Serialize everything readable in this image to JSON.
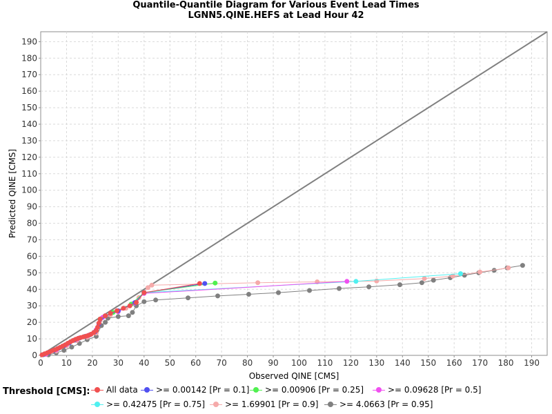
{
  "chart_data": {
    "type": "scatter",
    "title": [
      "Quantile-Quantile Diagram for Various Event Lead Times",
      "LGNN5.QINE.HEFS at Lead Hour 42"
    ],
    "xlabel": "Observed QINE [CMS]",
    "ylabel": "Predicted QINE [CMS]",
    "xlim": [
      0,
      196
    ],
    "ylim": [
      0,
      196
    ],
    "xticks": [
      0,
      10,
      20,
      30,
      40,
      50,
      60,
      70,
      80,
      90,
      100,
      110,
      120,
      130,
      140,
      150,
      160,
      170,
      180,
      190
    ],
    "yticks": [
      0,
      10,
      20,
      30,
      40,
      50,
      60,
      70,
      80,
      90,
      100,
      110,
      120,
      130,
      140,
      150,
      160,
      170,
      180,
      190
    ],
    "xtick_labels": [
      "0",
      "10",
      "20",
      "30",
      "40",
      "50",
      "60",
      "70",
      "80",
      "90",
      "100",
      "110",
      "120",
      "130",
      "140",
      "150",
      "160",
      "170",
      "180",
      "190"
    ],
    "ytick_labels": [
      "0",
      "10",
      "20",
      "30",
      "40",
      "50",
      "60",
      "70",
      "80",
      "90",
      "100",
      "110",
      "120",
      "130",
      "140",
      "150",
      "160",
      "170",
      "180",
      "190"
    ],
    "grid": true,
    "reference_line": {
      "x": [
        0,
        196
      ],
      "y": [
        0,
        196
      ],
      "color": "#808080"
    },
    "legend_title": "Threshold [CMS]:",
    "legend_position": "bottom",
    "series": [
      {
        "name": "All data",
        "color": "#f05050",
        "points": [
          [
            0.5,
            0.3
          ],
          [
            1.5,
            0.9
          ],
          [
            2.5,
            1.5
          ],
          [
            3.5,
            2.1
          ],
          [
            4.5,
            2.8
          ],
          [
            5.5,
            3.4
          ],
          [
            6.5,
            4.1
          ],
          [
            7.5,
            4.8
          ],
          [
            8.5,
            5.6
          ],
          [
            9.5,
            6.4
          ],
          [
            10.5,
            7.3
          ],
          [
            11.5,
            8.2
          ],
          [
            12.5,
            9.0
          ],
          [
            13.5,
            9.7
          ],
          [
            14.5,
            10.3
          ],
          [
            15.5,
            10.8
          ],
          [
            16.5,
            11.2
          ],
          [
            17.5,
            11.6
          ],
          [
            18.5,
            12.1
          ],
          [
            19.5,
            12.8
          ],
          [
            20.5,
            13.8
          ],
          [
            21.5,
            15.0
          ],
          [
            22.0,
            17.0
          ],
          [
            22.5,
            19.5
          ],
          [
            23.0,
            22.0
          ],
          [
            25.0,
            24.0
          ],
          [
            27.0,
            25.5
          ],
          [
            29.5,
            27.0
          ],
          [
            32.0,
            28.5
          ],
          [
            34.5,
            30.0
          ],
          [
            37.0,
            32.0
          ],
          [
            40.0,
            38.0
          ],
          [
            61.5,
            43.5
          ]
        ]
      },
      {
        "name": ">= 0.00142 [Pr = 0.1]",
        "color": "#5050f0",
        "points": [
          [
            1.0,
            0.4
          ],
          [
            3.0,
            1.6
          ],
          [
            5.0,
            2.9
          ],
          [
            7.0,
            4.3
          ],
          [
            9.0,
            5.8
          ],
          [
            11.0,
            7.5
          ],
          [
            13.0,
            9.2
          ],
          [
            15.0,
            10.5
          ],
          [
            17.0,
            11.4
          ],
          [
            19.0,
            12.4
          ],
          [
            21.0,
            14.2
          ],
          [
            22.5,
            19.0
          ],
          [
            25.0,
            24.0
          ],
          [
            30.0,
            27.0
          ],
          [
            36.5,
            32.0
          ],
          [
            40.0,
            38.0
          ],
          [
            63.5,
            43.5
          ]
        ]
      },
      {
        "name": ">= 0.00906 [Pr = 0.25]",
        "color": "#50f050",
        "points": [
          [
            1.0,
            0.4
          ],
          [
            5.0,
            2.9
          ],
          [
            9.0,
            5.8
          ],
          [
            13.0,
            9.2
          ],
          [
            17.0,
            11.4
          ],
          [
            21.0,
            14.2
          ],
          [
            23.0,
            22.0
          ],
          [
            28.0,
            26.0
          ],
          [
            35.0,
            31.0
          ],
          [
            40.0,
            38.0
          ],
          [
            67.5,
            43.8
          ]
        ]
      },
      {
        "name": ">= 0.09628 [Pr = 0.5]",
        "color": "#f050f0",
        "points": [
          [
            2.0,
            0.8
          ],
          [
            6.0,
            3.4
          ],
          [
            10.0,
            6.6
          ],
          [
            14.0,
            9.8
          ],
          [
            18.0,
            11.8
          ],
          [
            21.5,
            15.5
          ],
          [
            24.0,
            23.0
          ],
          [
            30.0,
            26.5
          ],
          [
            36.0,
            31.5
          ],
          [
            40.0,
            37.5
          ],
          [
            118.5,
            44.8
          ]
        ]
      },
      {
        "name": ">= 0.42475 [Pr = 0.75]",
        "color": "#50f0f0",
        "points": [
          [
            2.0,
            0.8
          ],
          [
            6.0,
            3.4
          ],
          [
            10.0,
            6.6
          ],
          [
            14.0,
            9.8
          ],
          [
            18.0,
            11.8
          ],
          [
            21.5,
            15.5
          ],
          [
            24.0,
            23.0
          ],
          [
            30.0,
            26.5
          ],
          [
            36.0,
            31.5
          ],
          [
            40.0,
            38.0
          ],
          [
            122.0,
            44.8
          ],
          [
            162.5,
            49.5
          ]
        ]
      },
      {
        "name": ">= 1.69901 [Pr = 0.9]",
        "color": "#f5aaaa",
        "points": [
          [
            2.0,
            0.5
          ],
          [
            6.0,
            2.6
          ],
          [
            10.0,
            5.8
          ],
          [
            14.0,
            9.0
          ],
          [
            18.0,
            11.0
          ],
          [
            21.5,
            13.5
          ],
          [
            23.0,
            21.0
          ],
          [
            27.0,
            24.5
          ],
          [
            33.0,
            28.5
          ],
          [
            38.0,
            35.0
          ],
          [
            41.5,
            41.0
          ],
          [
            43.0,
            42.5
          ],
          [
            84.0,
            44.0
          ],
          [
            107.0,
            44.5
          ],
          [
            130.0,
            45.0
          ],
          [
            148.5,
            46.5
          ],
          [
            159.5,
            48.0
          ],
          [
            170.0,
            50.5
          ],
          [
            181.0,
            53.0
          ]
        ]
      },
      {
        "name": ">= 4.0663 [Pr = 0.95]",
        "color": "#808080",
        "points": [
          [
            3.0,
            0.3
          ],
          [
            6.0,
            1.5
          ],
          [
            9.0,
            3.0
          ],
          [
            12.0,
            5.0
          ],
          [
            15.0,
            7.2
          ],
          [
            18.0,
            9.5
          ],
          [
            21.5,
            11.5
          ],
          [
            23.5,
            18.0
          ],
          [
            25.0,
            20.0
          ],
          [
            26.0,
            22.5
          ],
          [
            30.0,
            23.5
          ],
          [
            34.0,
            24.0
          ],
          [
            35.5,
            26.0
          ],
          [
            37.0,
            30.0
          ],
          [
            40.0,
            32.5
          ],
          [
            44.5,
            33.5
          ],
          [
            57.0,
            34.8
          ],
          [
            68.5,
            36.0
          ],
          [
            80.5,
            37.0
          ],
          [
            92.0,
            38.0
          ],
          [
            104.0,
            39.3
          ],
          [
            115.5,
            40.5
          ],
          [
            127.0,
            41.5
          ],
          [
            139.0,
            42.8
          ],
          [
            147.5,
            44.0
          ],
          [
            152.0,
            45.5
          ],
          [
            158.5,
            47.0
          ],
          [
            164.0,
            48.5
          ],
          [
            169.5,
            50.0
          ],
          [
            175.5,
            51.5
          ],
          [
            180.5,
            53.0
          ],
          [
            186.5,
            54.5
          ]
        ]
      }
    ]
  }
}
